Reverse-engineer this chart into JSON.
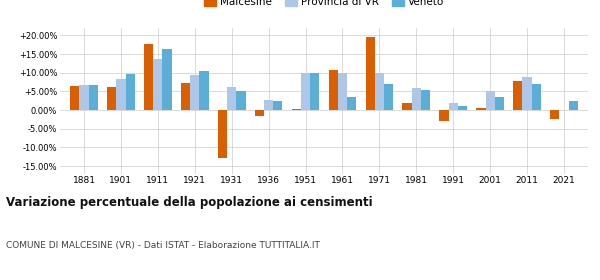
{
  "years": [
    1881,
    1901,
    1911,
    1921,
    1931,
    1936,
    1951,
    1961,
    1971,
    1981,
    1991,
    2001,
    2011,
    2021
  ],
  "malcesine": [
    6.5,
    6.2,
    17.8,
    7.3,
    -12.8,
    -1.5,
    0.3,
    10.7,
    19.5,
    1.8,
    -2.8,
    0.5,
    7.8,
    -2.5
  ],
  "provincia_vr": [
    6.8,
    8.3,
    13.8,
    9.5,
    6.2,
    2.8,
    10.0,
    10.0,
    10.0,
    5.8,
    2.0,
    5.0,
    9.0,
    null
  ],
  "veneto": [
    6.8,
    9.8,
    16.5,
    10.5,
    5.0,
    2.5,
    10.0,
    3.5,
    7.0,
    5.5,
    1.0,
    3.5,
    7.0,
    2.5
  ],
  "color_malcesine": "#d95f02",
  "color_provincia": "#aec6e8",
  "color_veneto": "#5bafd6",
  "title": "Variazione percentuale della popolazione ai censimenti",
  "subtitle": "COMUNE DI MALCESINE (VR) - Dati ISTAT - Elaborazione TUTTITALIA.IT",
  "ylabel_ticks": [
    "-15.00%",
    "-10.00%",
    "-5.00%",
    "0.00%",
    "+5.00%",
    "+10.00%",
    "+15.00%",
    "+20.00%"
  ],
  "ytick_vals": [
    -15,
    -10,
    -5,
    0,
    5,
    10,
    15,
    20
  ],
  "ylim": [
    -17,
    22
  ],
  "legend_labels": [
    "Malcesine",
    "Provincia di VR",
    "Veneto"
  ],
  "bar_width": 0.25
}
